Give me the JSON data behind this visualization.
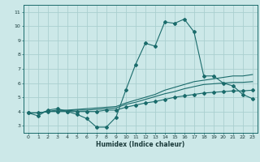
{
  "title": "",
  "xlabel": "Humidex (Indice chaleur)",
  "ylabel": "",
  "bg_color": "#cce8e8",
  "grid_color": "#aacfcf",
  "line_color": "#1a6b6b",
  "xlim": [
    -0.5,
    23.5
  ],
  "ylim": [
    2.5,
    11.5
  ],
  "xticks": [
    0,
    1,
    2,
    3,
    4,
    5,
    6,
    7,
    8,
    9,
    10,
    11,
    12,
    13,
    14,
    15,
    16,
    17,
    18,
    19,
    20,
    21,
    22,
    23
  ],
  "yticks": [
    3,
    4,
    5,
    6,
    7,
    8,
    9,
    10,
    11
  ],
  "series": [
    {
      "x": [
        0,
        1,
        2,
        3,
        4,
        5,
        6,
        7,
        8,
        9,
        10,
        11,
        12,
        13,
        14,
        15,
        16,
        17,
        18,
        19,
        20,
        21,
        22,
        23
      ],
      "y": [
        3.9,
        3.7,
        4.1,
        4.2,
        4.0,
        3.8,
        3.5,
        2.9,
        2.9,
        3.6,
        5.5,
        7.3,
        8.8,
        8.6,
        10.3,
        10.2,
        10.5,
        9.6,
        6.5,
        6.5,
        6.0,
        5.8,
        5.2,
        4.9
      ],
      "marker": true
    },
    {
      "x": [
        0,
        1,
        2,
        3,
        4,
        5,
        6,
        7,
        8,
        9,
        10,
        11,
        12,
        13,
        14,
        15,
        16,
        17,
        18,
        19,
        20,
        21,
        22,
        23
      ],
      "y": [
        3.9,
        3.9,
        4.0,
        4.1,
        4.1,
        4.15,
        4.2,
        4.25,
        4.3,
        4.35,
        4.6,
        4.8,
        5.0,
        5.2,
        5.5,
        5.7,
        5.9,
        6.1,
        6.2,
        6.3,
        6.4,
        6.5,
        6.5,
        6.6
      ],
      "marker": false
    },
    {
      "x": [
        0,
        1,
        2,
        3,
        4,
        5,
        6,
        7,
        8,
        9,
        10,
        11,
        12,
        13,
        14,
        15,
        16,
        17,
        18,
        19,
        20,
        21,
        22,
        23
      ],
      "y": [
        3.9,
        3.9,
        4.0,
        4.05,
        4.05,
        4.1,
        4.1,
        4.15,
        4.2,
        4.25,
        4.5,
        4.65,
        4.85,
        5.05,
        5.25,
        5.4,
        5.6,
        5.75,
        5.9,
        5.95,
        6.0,
        6.05,
        6.05,
        6.1
      ],
      "marker": false
    },
    {
      "x": [
        0,
        1,
        2,
        3,
        4,
        5,
        6,
        7,
        8,
        9,
        10,
        11,
        12,
        13,
        14,
        15,
        16,
        17,
        18,
        19,
        20,
        21,
        22,
        23
      ],
      "y": [
        3.9,
        3.9,
        4.0,
        4.0,
        4.0,
        4.0,
        4.0,
        4.0,
        4.1,
        4.1,
        4.3,
        4.45,
        4.6,
        4.7,
        4.85,
        5.0,
        5.1,
        5.2,
        5.3,
        5.35,
        5.4,
        5.45,
        5.45,
        5.5
      ],
      "marker": true
    }
  ]
}
